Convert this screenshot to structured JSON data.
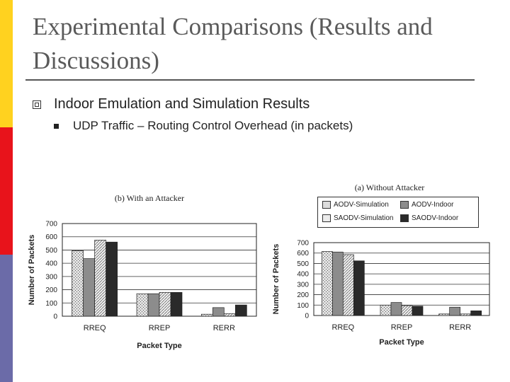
{
  "slide": {
    "title": "Experimental Comparisons (Results and Discussions)",
    "bullet1": "Indoor Emulation and Simulation Results",
    "bullet2": "UDP Traffic – Routing Control Overhead (in packets)"
  },
  "colors": {
    "sidebar": [
      "#ffd21f",
      "#e8131b",
      "#6b6ba8"
    ],
    "aodv_sim": "#d8d8d8",
    "aodv_indoor": "#8c8c8c",
    "saodv_sim": "#e6e6e6",
    "saodv_indoor": "#2a2a2a"
  },
  "legend": {
    "items": [
      "AODV-Simulation",
      "AODV-Indoor",
      "SAODV-Simulation",
      "SAODV-Indoor"
    ]
  },
  "chart_data": [
    {
      "type": "bar",
      "title": "(b) With an Attacker",
      "xlabel": "Packet Type",
      "ylabel": "Number of Packets",
      "categories": [
        "RREQ",
        "RREP",
        "RERR"
      ],
      "ylim": [
        0,
        700
      ],
      "yticks": [
        0,
        100,
        200,
        300,
        400,
        500,
        600,
        700
      ],
      "grid": true,
      "series": [
        {
          "name": "AODV-Simulation",
          "values": [
            495,
            170,
            15
          ]
        },
        {
          "name": "AODV-Indoor",
          "values": [
            435,
            170,
            65
          ]
        },
        {
          "name": "SAODV-Simulation",
          "values": [
            575,
            180,
            20
          ]
        },
        {
          "name": "SAODV-Indoor",
          "values": [
            560,
            180,
            85
          ]
        }
      ]
    },
    {
      "type": "bar",
      "title": "(a) Without Attacker",
      "xlabel": "Packet Type",
      "ylabel": "Number of Packets",
      "categories": [
        "RREQ",
        "RREP",
        "RERR"
      ],
      "ylim": [
        0,
        700
      ],
      "yticks": [
        0,
        100,
        200,
        300,
        400,
        500,
        600,
        700
      ],
      "grid": true,
      "legend_position": "top",
      "series": [
        {
          "name": "AODV-Simulation",
          "values": [
            615,
            100,
            15
          ]
        },
        {
          "name": "AODV-Indoor",
          "values": [
            610,
            125,
            80
          ]
        },
        {
          "name": "SAODV-Simulation",
          "values": [
            585,
            95,
            15
          ]
        },
        {
          "name": "SAODV-Indoor",
          "values": [
            525,
            90,
            45
          ]
        }
      ]
    }
  ]
}
